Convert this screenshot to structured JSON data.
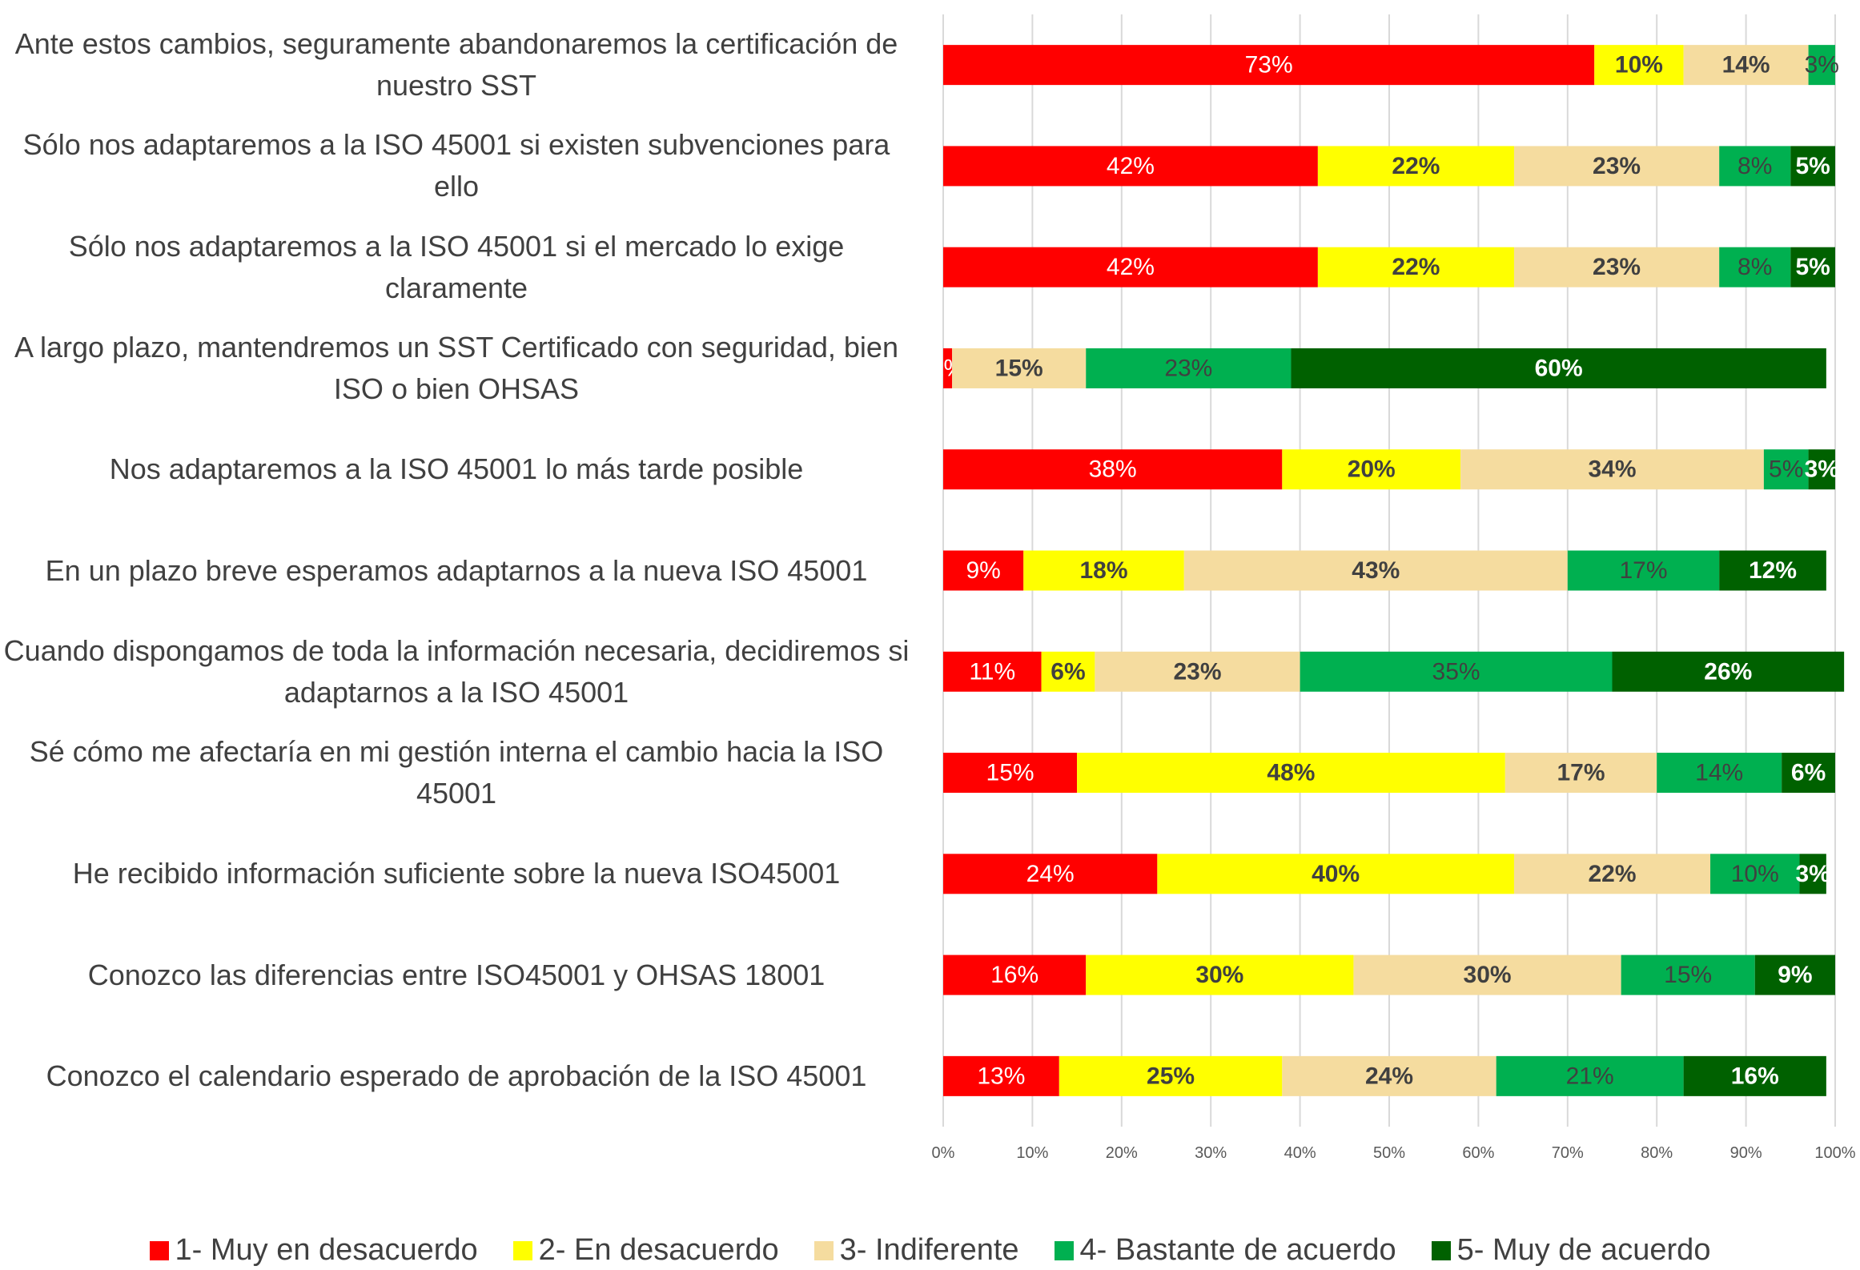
{
  "chart_data": {
    "type": "stacked_bar_horizontal",
    "categories": [
      "Ante estos cambios, seguramente abandonaremos la certificación de nuestro SST",
      "Sólo nos adaptaremos a la ISO 45001 si existen subvenciones para ello",
      "Sólo nos adaptaremos a la ISO 45001 si el mercado lo exige claramente",
      "A largo plazo, mantendremos un SST Certificado con seguridad, bien ISO o bien OHSAS",
      "Nos adaptaremos a la ISO 45001 lo más tarde posible",
      "En un plazo breve esperamos adaptarnos a la nueva ISO 45001",
      "Cuando dispongamos de toda la información necesaria, decidiremos si adaptarnos a la ISO 45001",
      "Sé cómo me afectaría en mi gestión interna el cambio hacia la ISO 45001",
      "He recibido información suficiente sobre la nueva ISO45001",
      "Conozco las diferencias entre ISO45001 y OHSAS 18001",
      "Conozco el calendario esperado de aprobación de la ISO 45001"
    ],
    "series": [
      {
        "name": "1- Muy en desacuerdo",
        "color": "#ff0000",
        "values": [
          73,
          42,
          42,
          1,
          38,
          9,
          11,
          15,
          24,
          16,
          13
        ],
        "value_labels": [
          "73%",
          "42%",
          "42%",
          "1%",
          "38%",
          "9%",
          "11%",
          "15%",
          "24%",
          "16%",
          "13%"
        ]
      },
      {
        "name": "2- En desacuerdo",
        "color": "#ffff00",
        "values": [
          10,
          22,
          22,
          null,
          20,
          18,
          6,
          48,
          40,
          30,
          25
        ],
        "value_labels": [
          "10%",
          "22%",
          "22%",
          null,
          "20%",
          "18%",
          "6%",
          "48%",
          "40%",
          "30%",
          "25%"
        ]
      },
      {
        "name": "3- Indiferente",
        "color": "#f5dc9f",
        "values": [
          14,
          23,
          23,
          15,
          34,
          43,
          23,
          17,
          22,
          30,
          24
        ],
        "value_labels": [
          "14%",
          "23%",
          "23%",
          "15%",
          "34%",
          "43%",
          "23%",
          "17%",
          "22%",
          "30%",
          "24%"
        ]
      },
      {
        "name": "4- Bastante de acuerdo",
        "color": "#00b050",
        "values": [
          3,
          8,
          8,
          23,
          5,
          17,
          35,
          14,
          10,
          15,
          21
        ],
        "value_labels": [
          "3%",
          "8%",
          "8%",
          "23%",
          "5%",
          "17%",
          "35%",
          "14%",
          "10%",
          "15%",
          "21%"
        ]
      },
      {
        "name": "5- Muy de acuerdo",
        "color": "#006100",
        "values": [
          null,
          5,
          5,
          60,
          3,
          12,
          26,
          6,
          3,
          9,
          16
        ],
        "value_labels": [
          null,
          "5%",
          "5%",
          "60%",
          "3%",
          "12%",
          "26%",
          "6%",
          "3%",
          "9%",
          "16%"
        ]
      }
    ],
    "xlim": [
      0,
      100
    ],
    "xticks": [
      {
        "value": 0,
        "label": "0%"
      },
      {
        "value": 10,
        "label": "10%"
      },
      {
        "value": 20,
        "label": "20%"
      },
      {
        "value": 30,
        "label": "30%"
      },
      {
        "value": 40,
        "label": "40%"
      },
      {
        "value": 50,
        "label": "50%"
      },
      {
        "value": 60,
        "label": "60%"
      },
      {
        "value": 70,
        "label": "70%"
      },
      {
        "value": 80,
        "label": "80%"
      },
      {
        "value": 90,
        "label": "90%"
      },
      {
        "value": 100,
        "label": "100%"
      }
    ],
    "grid": true,
    "legend": "bottom"
  }
}
